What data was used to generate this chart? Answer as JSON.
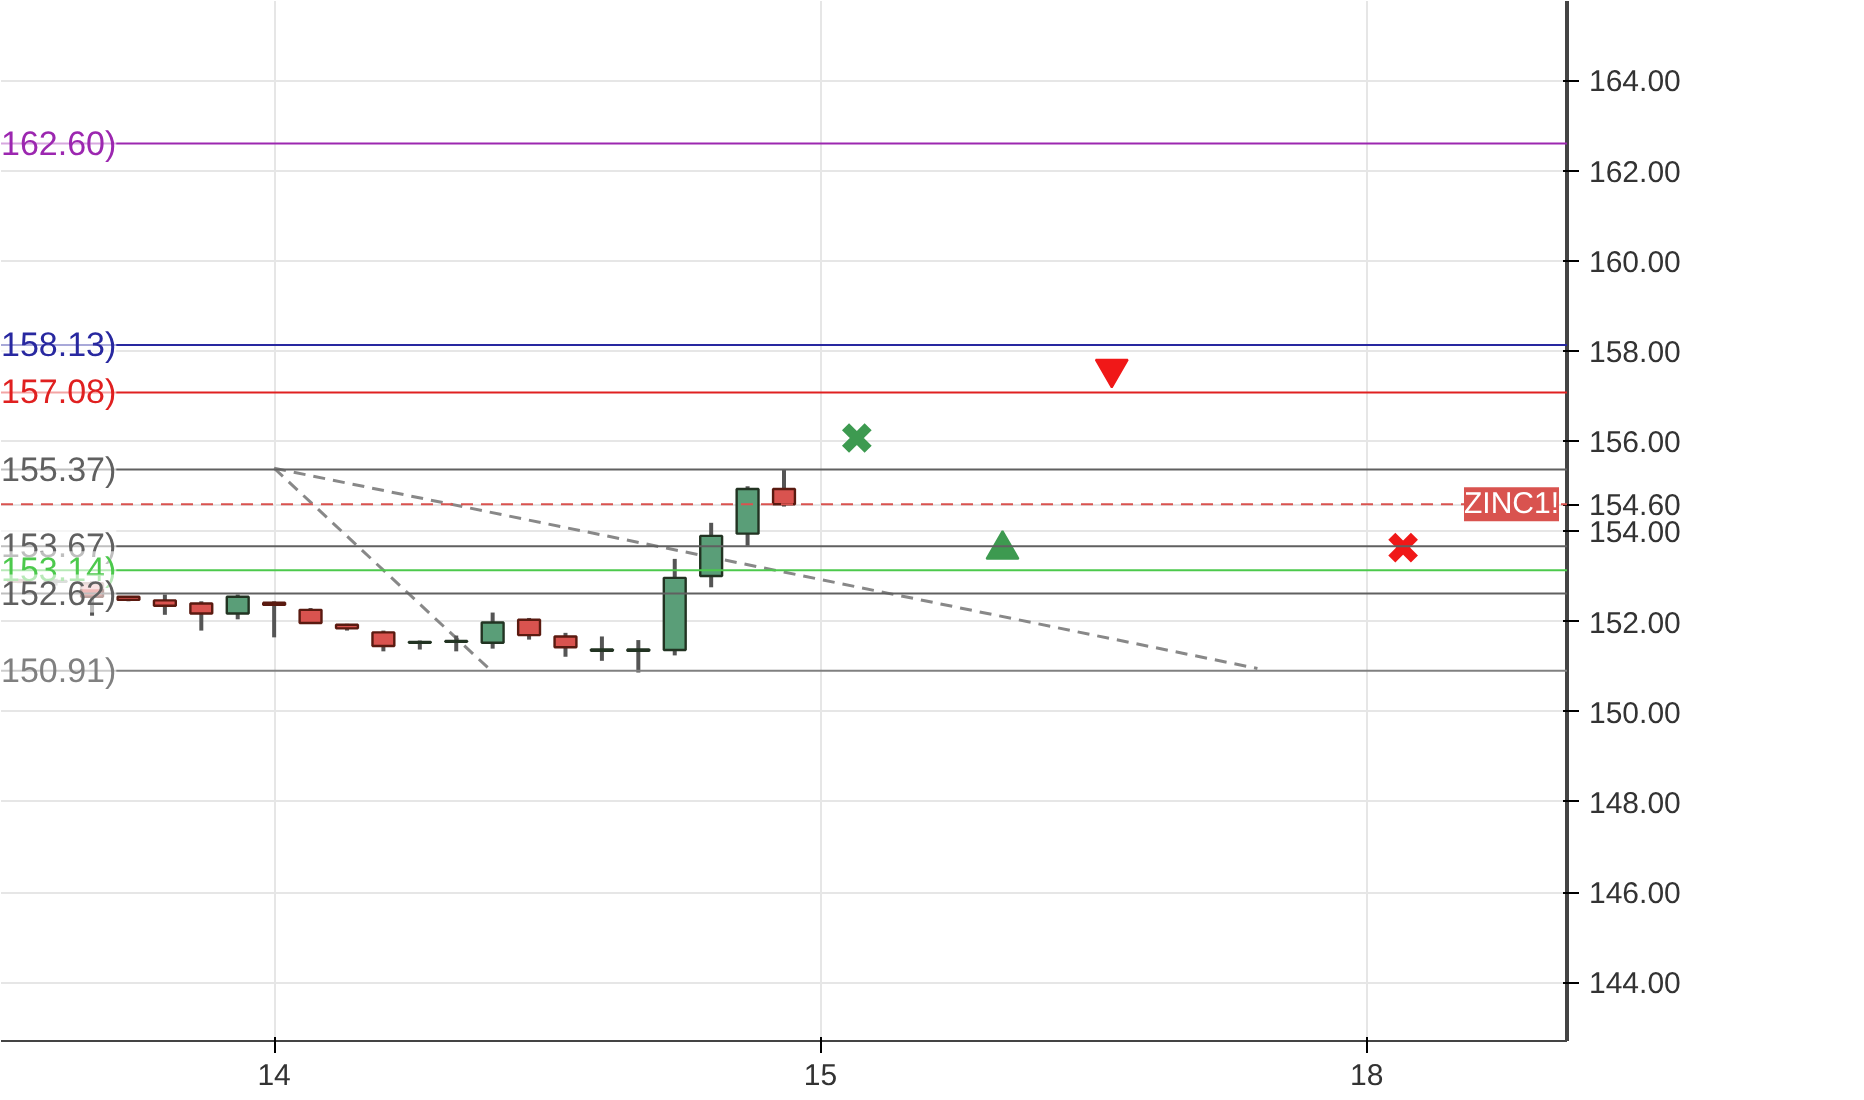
{
  "chart_data": {
    "type": "candlestick",
    "categories": [
      null,
      null,
      null,
      null,
      null,
      null,
      null,
      "14",
      null,
      null,
      null,
      null,
      null,
      null,
      null,
      null,
      null,
      null,
      null,
      null,
      null,
      null,
      "15",
      null,
      null,
      null,
      null,
      null,
      null,
      null,
      null,
      null,
      null,
      null,
      null,
      null,
      null,
      "18",
      null,
      null,
      null,
      null,
      null
    ],
    "ohlc": [
      [
        152.92,
        152.95,
        152.85,
        152.88
      ],
      [
        152.88,
        152.95,
        152.8,
        152.9
      ],
      [
        152.85,
        152.9,
        152.13,
        152.55
      ],
      [
        152.55,
        152.55,
        152.45,
        152.48
      ],
      [
        152.47,
        152.6,
        152.15,
        152.35
      ],
      [
        152.4,
        152.45,
        151.8,
        152.18
      ],
      [
        152.18,
        152.6,
        152.05,
        152.55
      ],
      [
        152.42,
        152.45,
        151.65,
        152.37
      ],
      [
        152.26,
        152.3,
        151.95,
        151.97
      ],
      [
        151.93,
        151.95,
        151.8,
        151.85
      ],
      [
        151.76,
        151.8,
        151.34,
        151.46
      ],
      [
        151.53,
        151.58,
        151.38,
        151.55
      ],
      [
        151.55,
        151.69,
        151.34,
        151.57
      ],
      [
        151.53,
        152.2,
        151.4,
        151.98
      ],
      [
        152.04,
        152.08,
        151.6,
        151.7
      ],
      [
        151.67,
        151.75,
        151.22,
        151.43
      ],
      [
        151.35,
        151.67,
        151.13,
        151.38
      ],
      [
        151.35,
        151.59,
        150.87,
        151.38
      ],
      [
        151.37,
        153.39,
        151.25,
        152.97
      ],
      [
        153.01,
        154.19,
        152.76,
        153.9
      ],
      [
        153.95,
        155.0,
        153.68,
        154.94
      ],
      [
        154.94,
        155.36,
        154.55,
        154.6
      ],
      null,
      null,
      null,
      null,
      null,
      null,
      null,
      null,
      null,
      null,
      null,
      null,
      null,
      null,
      null,
      null,
      null,
      null,
      null,
      null,
      null
    ],
    "colors": [
      "#d9534f",
      "#5a9e78",
      "#d9534f",
      "#d9534f",
      "#d9534f",
      "#d9534f",
      "#5a9e78",
      "#d9534f",
      "#d9534f",
      "#d9534f",
      "#d9534f",
      "#5a9e78",
      "#5a9e78",
      "#5a9e78",
      "#d9534f",
      "#d9534f",
      "#5a9e78",
      "#5a9e78",
      "#5a9e78",
      "#5a9e78",
      "#5a9e78",
      "#d9534f",
      null,
      null,
      null,
      null,
      null,
      null,
      null,
      null,
      null,
      null,
      null,
      null,
      null,
      null,
      null,
      null,
      null,
      null,
      null,
      null,
      null
    ],
    "series": [
      {
        "type": "line",
        "values": [
          null,
          null,
          null,
          null,
          null,
          null,
          null,
          155.4,
          null,
          null,
          null,
          null,
          null,
          null,
          null,
          null,
          null,
          null,
          null,
          null,
          null,
          null,
          null,
          null,
          null,
          null,
          null,
          null,
          null,
          null,
          null,
          null,
          null,
          null,
          150.96,
          null,
          null,
          null,
          null,
          null,
          null,
          null,
          null
        ],
        "color": "#888888",
        "line_style": "dashed"
      },
      {
        "type": "line",
        "values": [
          null,
          null,
          null,
          null,
          null,
          null,
          null,
          155.4,
          null,
          null,
          null,
          null,
          null,
          150.88,
          null,
          null,
          null,
          null,
          null,
          null,
          null,
          null,
          null,
          null,
          null,
          null,
          null,
          null,
          null,
          null,
          null,
          null,
          null,
          null,
          null,
          null,
          null,
          null,
          null,
          null,
          null,
          null,
          null
        ],
        "color": "#888888",
        "line_style": "dashed"
      },
      {
        "type": "scatter",
        "values": [
          null,
          null,
          null,
          null,
          null,
          null,
          null,
          null,
          null,
          null,
          null,
          null,
          null,
          null,
          null,
          null,
          null,
          null,
          null,
          null,
          null,
          null,
          null,
          156.07,
          null,
          null,
          null,
          null,
          null,
          null,
          null,
          null,
          null,
          null,
          null,
          null,
          null,
          null,
          null,
          null,
          null,
          null,
          null
        ],
        "color": "#3d9a50",
        "marker": "cross"
      },
      {
        "type": "scatter",
        "values": [
          null,
          null,
          null,
          null,
          null,
          null,
          null,
          null,
          null,
          null,
          null,
          null,
          null,
          null,
          null,
          null,
          null,
          null,
          null,
          null,
          null,
          null,
          null,
          null,
          null,
          null,
          null,
          null,
          null,
          null,
          null,
          null,
          null,
          null,
          null,
          null,
          null,
          null,
          153.64,
          null,
          null,
          null,
          null
        ],
        "color": "#f01818",
        "marker": "cross"
      },
      {
        "type": "scatter",
        "values": [
          null,
          null,
          null,
          null,
          null,
          null,
          null,
          null,
          null,
          null,
          null,
          null,
          null,
          null,
          null,
          null,
          null,
          null,
          null,
          null,
          null,
          null,
          null,
          null,
          null,
          null,
          null,
          153.6,
          null,
          null,
          null,
          null,
          null,
          null,
          null,
          null,
          null,
          null,
          null,
          null,
          null,
          null,
          null
        ],
        "color": "#3d9a50",
        "marker": "triangle"
      },
      {
        "type": "scatter",
        "values": [
          null,
          null,
          null,
          null,
          null,
          null,
          null,
          null,
          null,
          null,
          null,
          null,
          null,
          null,
          null,
          null,
          null,
          null,
          null,
          null,
          null,
          null,
          null,
          null,
          null,
          null,
          null,
          null,
          null,
          null,
          157.6,
          null,
          null,
          null,
          null,
          null,
          null,
          null,
          null,
          null,
          null,
          null,
          null
        ],
        "color": "#f01818"
      }
    ],
    "ref_lines": [
      {
        "axis": "y",
        "value": 162.6,
        "label": "162.60)",
        "color": "#9c27b0"
      },
      {
        "axis": "y",
        "value": 158.13,
        "label": "158.13)",
        "color": "#2828a0"
      },
      {
        "axis": "y",
        "value": 157.08,
        "label": "157.08)",
        "color": "#e02020"
      },
      {
        "axis": "y",
        "value": 155.37,
        "label": "155.37)",
        "color": "#606060"
      },
      {
        "axis": "y",
        "value": 153.67,
        "label": "153.67)",
        "color": "#606060"
      },
      {
        "axis": "y",
        "value": 153.14,
        "label": "153.14)",
        "color": "#4cc94c"
      },
      {
        "axis": "y",
        "value": 152.62,
        "label": "152.62)",
        "color": "#606060"
      },
      {
        "axis": "y",
        "value": 150.91,
        "label": "150.91)",
        "color": "#808080"
      },
      {
        "axis": "y",
        "value": 154.6,
        "label": "ZINC1!",
        "color": "#d9534f",
        "line_style": "dashed"
      }
    ],
    "ylim": [
      142.7,
      165.76
    ],
    "yticks": [
      {
        "value": 144,
        "label": "144.00"
      },
      {
        "value": 146,
        "label": "146.00"
      },
      {
        "value": 148,
        "label": "148.00"
      },
      {
        "value": 150,
        "label": "150.00"
      },
      {
        "value": 152,
        "label": "152.00"
      },
      {
        "value": 154,
        "label": "154.00"
      },
      {
        "value": 154.6,
        "label": "154.60"
      },
      {
        "value": 156,
        "label": "156.00"
      },
      {
        "value": 158,
        "label": "158.00"
      },
      {
        "value": 160,
        "label": "160.00"
      },
      {
        "value": 162,
        "label": "162.00"
      },
      {
        "value": 164,
        "label": "164.00"
      }
    ],
    "grid": true
  }
}
